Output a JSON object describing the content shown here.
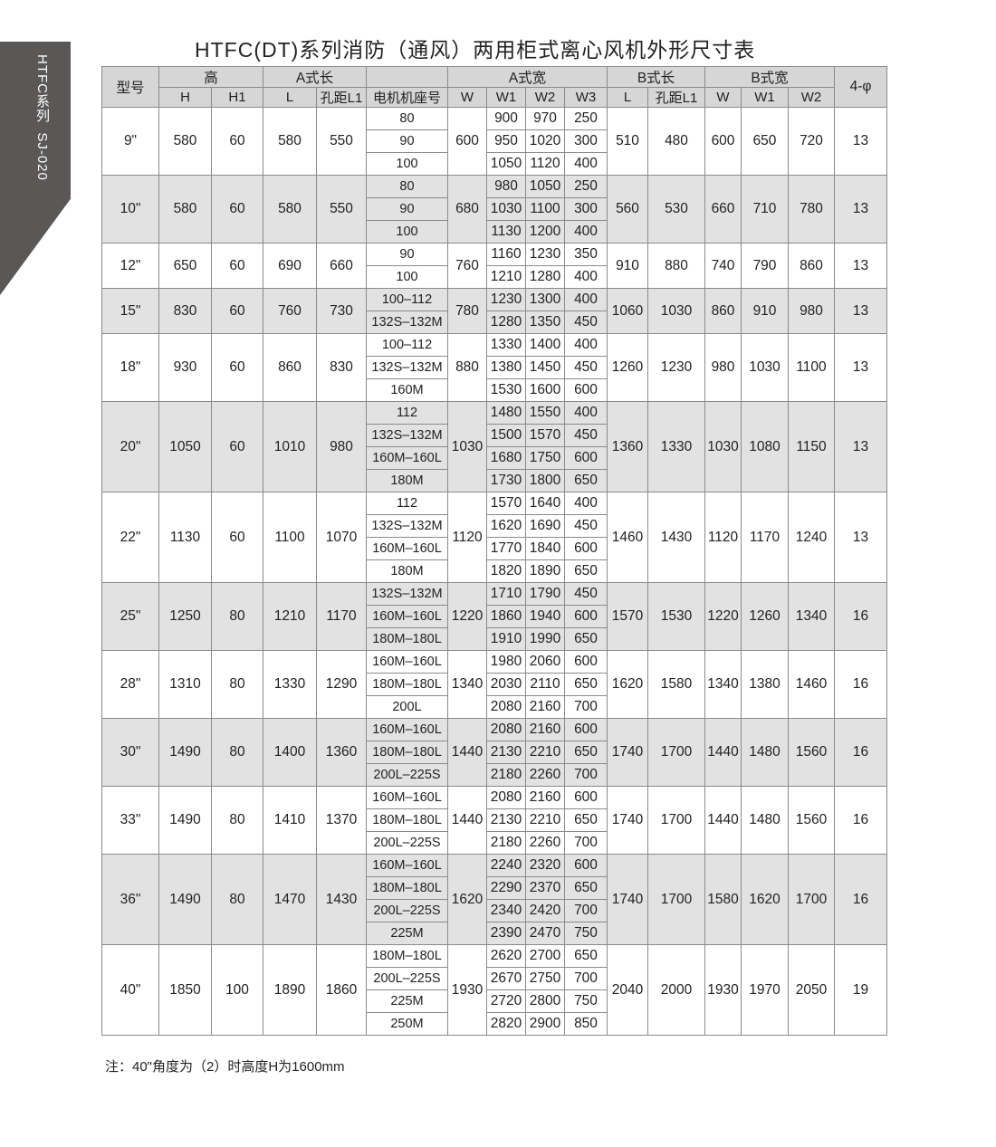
{
  "side_tab": {
    "label": "HTFC系列  SJ-020"
  },
  "title": "HTFC(DT)系列消防（通风）两用柜式离心风机外形尺寸表",
  "headers": {
    "model": "型号",
    "height": "高",
    "H": "H",
    "H1": "H1",
    "a_length": "A式长",
    "L": "L",
    "L1": "孔距L1",
    "motor_seat": "电机机座号",
    "a_width": "A式宽",
    "W": "W",
    "W1": "W1",
    "W2": "W2",
    "W3": "W3",
    "b_length": "B式长",
    "bL": "L",
    "bL1": "孔距L1",
    "b_width": "B式宽",
    "bW": "W",
    "bW1": "W1",
    "bW2": "W2",
    "holes": "4-φ"
  },
  "rows": [
    {
      "model": "9\"",
      "H": "580",
      "H1": "60",
      "L": "580",
      "L1": "550",
      "W": "600",
      "bL": "510",
      "bL1": "480",
      "bW": "600",
      "bW1": "650",
      "bW2": "720",
      "holes": "13",
      "shade": false,
      "motors": [
        [
          "80",
          "900",
          "970",
          "250"
        ],
        [
          "90",
          "950",
          "1020",
          "300"
        ],
        [
          "100",
          "1050",
          "1120",
          "400"
        ]
      ]
    },
    {
      "model": "10\"",
      "H": "580",
      "H1": "60",
      "L": "580",
      "L1": "550",
      "W": "680",
      "bL": "560",
      "bL1": "530",
      "bW": "660",
      "bW1": "710",
      "bW2": "780",
      "holes": "13",
      "shade": true,
      "motors": [
        [
          "80",
          "980",
          "1050",
          "250"
        ],
        [
          "90",
          "1030",
          "1100",
          "300"
        ],
        [
          "100",
          "1130",
          "1200",
          "400"
        ]
      ]
    },
    {
      "model": "12\"",
      "H": "650",
      "H1": "60",
      "L": "690",
      "L1": "660",
      "W": "760",
      "bL": "910",
      "bL1": "880",
      "bW": "740",
      "bW1": "790",
      "bW2": "860",
      "holes": "13",
      "shade": false,
      "motors": [
        [
          "90",
          "1160",
          "1230",
          "350"
        ],
        [
          "100",
          "1210",
          "1280",
          "400"
        ]
      ]
    },
    {
      "model": "15\"",
      "H": "830",
      "H1": "60",
      "L": "760",
      "L1": "730",
      "W": "780",
      "bL": "1060",
      "bL1": "1030",
      "bW": "860",
      "bW1": "910",
      "bW2": "980",
      "holes": "13",
      "shade": true,
      "motors": [
        [
          "100–112",
          "1230",
          "1300",
          "400"
        ],
        [
          "132S–132M",
          "1280",
          "1350",
          "450"
        ]
      ]
    },
    {
      "model": "18\"",
      "H": "930",
      "H1": "60",
      "L": "860",
      "L1": "830",
      "W": "880",
      "bL": "1260",
      "bL1": "1230",
      "bW": "980",
      "bW1": "1030",
      "bW2": "1100",
      "holes": "13",
      "shade": false,
      "motors": [
        [
          "100–112",
          "1330",
          "1400",
          "400"
        ],
        [
          "132S–132M",
          "1380",
          "1450",
          "450"
        ],
        [
          "160M",
          "1530",
          "1600",
          "600"
        ]
      ]
    },
    {
      "model": "20\"",
      "H": "1050",
      "H1": "60",
      "L": "1010",
      "L1": "980",
      "W": "1030",
      "bL": "1360",
      "bL1": "1330",
      "bW": "1030",
      "bW1": "1080",
      "bW2": "1150",
      "holes": "13",
      "shade": true,
      "motors": [
        [
          "112",
          "1480",
          "1550",
          "400"
        ],
        [
          "132S–132M",
          "1500",
          "1570",
          "450"
        ],
        [
          "160M–160L",
          "1680",
          "1750",
          "600"
        ],
        [
          "180M",
          "1730",
          "1800",
          "650"
        ]
      ]
    },
    {
      "model": "22\"",
      "H": "1130",
      "H1": "60",
      "L": "1100",
      "L1": "1070",
      "W": "1120",
      "bL": "1460",
      "bL1": "1430",
      "bW": "1120",
      "bW1": "1170",
      "bW2": "1240",
      "holes": "13",
      "shade": false,
      "motors": [
        [
          "112",
          "1570",
          "1640",
          "400"
        ],
        [
          "132S–132M",
          "1620",
          "1690",
          "450"
        ],
        [
          "160M–160L",
          "1770",
          "1840",
          "600"
        ],
        [
          "180M",
          "1820",
          "1890",
          "650"
        ]
      ]
    },
    {
      "model": "25\"",
      "H": "1250",
      "H1": "80",
      "L": "1210",
      "L1": "1170",
      "W": "1220",
      "bL": "1570",
      "bL1": "1530",
      "bW": "1220",
      "bW1": "1260",
      "bW2": "1340",
      "holes": "16",
      "shade": true,
      "motors": [
        [
          "132S–132M",
          "1710",
          "1790",
          "450"
        ],
        [
          "160M–160L",
          "1860",
          "1940",
          "600"
        ],
        [
          "180M–180L",
          "1910",
          "1990",
          "650"
        ]
      ]
    },
    {
      "model": "28\"",
      "H": "1310",
      "H1": "80",
      "L": "1330",
      "L1": "1290",
      "W": "1340",
      "bL": "1620",
      "bL1": "1580",
      "bW": "1340",
      "bW1": "1380",
      "bW2": "1460",
      "holes": "16",
      "shade": false,
      "motors": [
        [
          "160M–160L",
          "1980",
          "2060",
          "600"
        ],
        [
          "180M–180L",
          "2030",
          "2110",
          "650"
        ],
        [
          "200L",
          "2080",
          "2160",
          "700"
        ]
      ]
    },
    {
      "model": "30\"",
      "H": "1490",
      "H1": "80",
      "L": "1400",
      "L1": "1360",
      "W": "1440",
      "bL": "1740",
      "bL1": "1700",
      "bW": "1440",
      "bW1": "1480",
      "bW2": "1560",
      "holes": "16",
      "shade": true,
      "motors": [
        [
          "160M–160L",
          "2080",
          "2160",
          "600"
        ],
        [
          "180M–180L",
          "2130",
          "2210",
          "650"
        ],
        [
          "200L–225S",
          "2180",
          "2260",
          "700"
        ]
      ]
    },
    {
      "model": "33\"",
      "H": "1490",
      "H1": "80",
      "L": "1410",
      "L1": "1370",
      "W": "1440",
      "bL": "1740",
      "bL1": "1700",
      "bW": "1440",
      "bW1": "1480",
      "bW2": "1560",
      "holes": "16",
      "shade": false,
      "motors": [
        [
          "160M–160L",
          "2080",
          "2160",
          "600"
        ],
        [
          "180M–180L",
          "2130",
          "2210",
          "650"
        ],
        [
          "200L–225S",
          "2180",
          "2260",
          "700"
        ]
      ]
    },
    {
      "model": "36\"",
      "H": "1490",
      "H1": "80",
      "L": "1470",
      "L1": "1430",
      "W": "1620",
      "bL": "1740",
      "bL1": "1700",
      "bW": "1580",
      "bW1": "1620",
      "bW2": "1700",
      "holes": "16",
      "shade": true,
      "motors": [
        [
          "160M–160L",
          "2240",
          "2320",
          "600"
        ],
        [
          "180M–180L",
          "2290",
          "2370",
          "650"
        ],
        [
          "200L–225S",
          "2340",
          "2420",
          "700"
        ],
        [
          "225M",
          "2390",
          "2470",
          "750"
        ]
      ]
    },
    {
      "model": "40\"",
      "H": "1850",
      "H1": "100",
      "L": "1890",
      "L1": "1860",
      "W": "1930",
      "bL": "2040",
      "bL1": "2000",
      "bW": "1930",
      "bW1": "1970",
      "bW2": "2050",
      "holes": "19",
      "shade": false,
      "motors": [
        [
          "180M–180L",
          "2620",
          "2700",
          "650"
        ],
        [
          "200L–225S",
          "2670",
          "2750",
          "700"
        ],
        [
          "225M",
          "2720",
          "2800",
          "750"
        ],
        [
          "250M",
          "2820",
          "2900",
          "850"
        ]
      ]
    }
  ],
  "note": "注：40\"角度为（2）时高度H为1600mm"
}
